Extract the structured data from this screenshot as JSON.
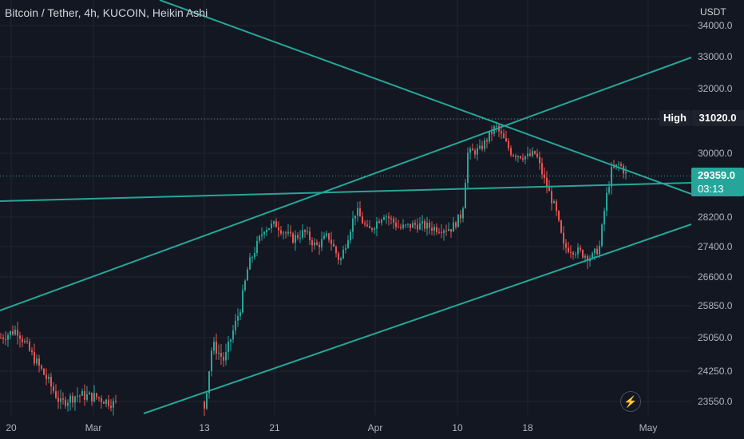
{
  "header": {
    "title": "Bitcoin / Tether, 4h, KUCOIN, Heikin Ashi",
    "currency": "USDT"
  },
  "markers": {
    "high_label": "High",
    "high_value": "31020.0",
    "last_price": "29359.0",
    "countdown": "03:13"
  },
  "toolbar": {
    "bolt_icon": "lightning-icon"
  },
  "colors": {
    "up": "#26a69a",
    "down": "#ef5350",
    "trendline": "#26a69a",
    "background": "#131722",
    "grid": "#1f2430"
  },
  "chart_data": {
    "type": "candlestick",
    "style": "Heikin Ashi",
    "y_axis_ticks": [
      34000,
      33000,
      32000,
      31020,
      30000,
      28200,
      27400,
      26600,
      25850,
      25050,
      24250,
      23550
    ],
    "y_tick_labels": [
      "34000.0",
      "33000.0",
      "32000.0",
      "31020.0",
      "30000.0",
      "28200.0",
      "27400.0",
      "26600.0",
      "25850.0",
      "25050.0",
      "24250.0",
      "23550.0"
    ],
    "x_axis_labels": [
      "20",
      "Mar",
      "13",
      "21",
      "Apr",
      "10",
      "18",
      "May"
    ],
    "high_line": 31020.0,
    "last_price_line": 29359.0,
    "trend_channel": "ascending channel with descending resistance line",
    "grid": true
  }
}
